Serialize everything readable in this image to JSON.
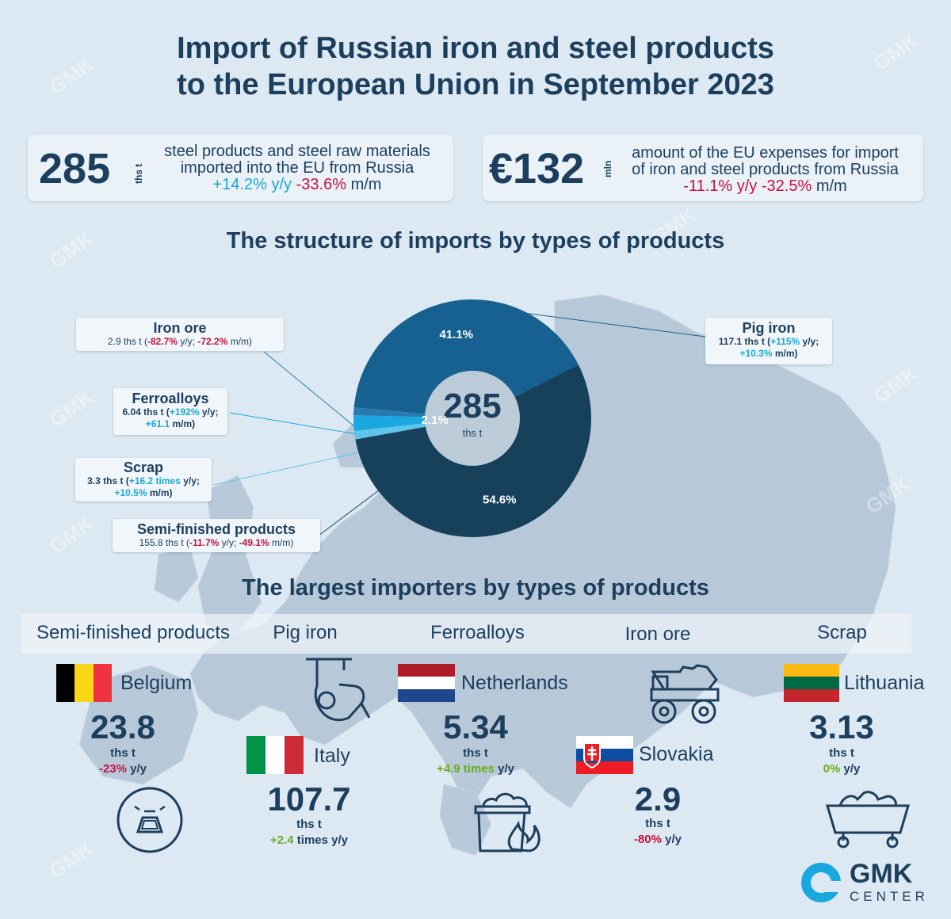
{
  "title": {
    "line1": "Import of Russian iron and steel products",
    "line2": "to the European Union in September 2023"
  },
  "kpi_volume": {
    "value": "285",
    "unit": "ths t",
    "line1": "steel products and steel raw materials",
    "line2": "imported into the EU from Russia",
    "yy": "+14.2%",
    "yy_label": "y/y",
    "mm": "-33.6%",
    "mm_label": "m/m"
  },
  "kpi_cost": {
    "value": "€132",
    "unit": "mln",
    "line1": "amount of the EU expenses for import",
    "line2": "of iron and steel products from Russia",
    "yy": "-11.1%",
    "yy_label": "y/y",
    "mm": "-32.5%",
    "mm_label": "m/m"
  },
  "structure_heading": "The structure of imports by types of products",
  "donut": {
    "center_value": "285",
    "center_unit": "ths t",
    "slices": [
      {
        "name": "Pig iron",
        "share": 41.1,
        "label": "41.1%",
        "color": "#16618f"
      },
      {
        "name": "Semi-finished products",
        "share": 54.6,
        "label": "54.6%",
        "color": "#17405b"
      },
      {
        "name": "Scrap",
        "share": 1.16,
        "label": "",
        "color": "#5ec4ea"
      },
      {
        "name": "Ferroalloys",
        "share": 2.1,
        "label": "2.1%",
        "color": "#1aa7e0"
      },
      {
        "name": "Iron ore",
        "share": 1.04,
        "label": "",
        "color": "#2a7ab0"
      }
    ]
  },
  "callouts": {
    "iron_ore": {
      "title": "Iron ore",
      "value": "2.9 ths t (",
      "yy": "-82.7%",
      "yy_label": " y/y; ",
      "mm": "-72.2%",
      "mm_label": " m/m)"
    },
    "ferroalloys": {
      "title": "Ferroalloys",
      "value": "6.04 ths t (",
      "yy": "+192%",
      "yy_label": " y/y;",
      "mm": "+61.1",
      "mm_label": " m/m)"
    },
    "scrap": {
      "title": "Scrap",
      "value": "3.3 ths t (",
      "yy": "+16.2 times",
      "yy_label": " y/y;",
      "mm": "+10.5%",
      "mm_label": " m/m)"
    },
    "semi": {
      "title": "Semi-finished products",
      "value": "155.8 ths t (",
      "yy": "-11.7%",
      "yy_label": " y/y; ",
      "mm": "-49.1%",
      "mm_label": " m/m)"
    },
    "pig_iron": {
      "title": "Pig iron",
      "value": "117.1 ths t (",
      "yy": "+115%",
      "yy_label": " y/y;",
      "mm": "+10.3%",
      "mm_label": " m/m)"
    }
  },
  "importers_heading": "The largest importers by types of products",
  "categories": {
    "semi": "Semi-finished products",
    "pig_iron": "Pig iron",
    "ferroalloys": "Ferroalloys",
    "iron_ore": "Iron ore",
    "scrap": "Scrap"
  },
  "importers": {
    "belgium": {
      "country": "Belgium",
      "value": "23.8",
      "unit": "ths t",
      "change": "-23%",
      "change_label": " y/y"
    },
    "italy": {
      "country": "Italy",
      "value": "107.7",
      "unit": "ths t",
      "change": "+2.4",
      "change_label": " times y/y"
    },
    "netherlands": {
      "country": "Netherlands",
      "value": "5.34",
      "unit": "ths t",
      "change": "+4.9 times",
      "change_label": " y/y"
    },
    "slovakia": {
      "country": "Slovakia",
      "value": "2.9",
      "unit": "ths t",
      "change": "-80%",
      "change_label": " y/y"
    },
    "lithuania": {
      "country": "Lithuania",
      "value": "3.13",
      "unit": "ths t",
      "change": "0%",
      "change_label": " y/y"
    }
  },
  "logo": {
    "line1": "GMK",
    "line2": "CENTER"
  },
  "watermark": "GMK",
  "colors": {
    "background": "#dde9f2",
    "navy": "#1c3f5d",
    "positive": "#1aa8d8",
    "negative": "#c4123f",
    "green": "#6aaa1e"
  }
}
